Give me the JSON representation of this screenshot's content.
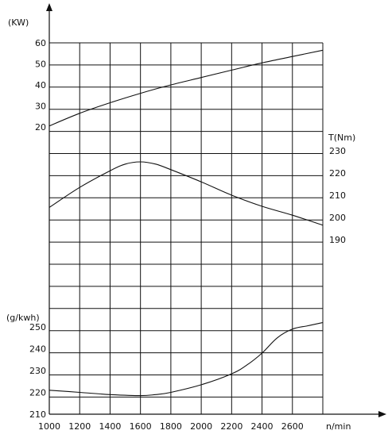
{
  "chart_data": {
    "type": "line",
    "title": "",
    "grid": true,
    "x": {
      "label": "n/min",
      "ticks": [
        1000,
        1200,
        1400,
        1600,
        1800,
        2000,
        2200,
        2400,
        2600
      ],
      "range": [
        1000,
        2800
      ]
    },
    "y_axes": [
      {
        "id": "power",
        "label": "(KW)",
        "side": "left",
        "ticks": [
          20,
          30,
          40,
          50,
          60
        ],
        "range": [
          20,
          60
        ]
      },
      {
        "id": "torque",
        "label": "T(Nm)",
        "side": "right",
        "ticks": [
          190,
          200,
          210,
          220,
          230
        ],
        "range": [
          190,
          230
        ]
      },
      {
        "id": "bsfc",
        "label": "(g/kwh)",
        "side": "left",
        "ticks": [
          210,
          220,
          230,
          240,
          250
        ],
        "range": [
          210,
          250
        ]
      }
    ],
    "series": [
      {
        "axis": "power",
        "x": [
          1000,
          1200,
          1400,
          1600,
          1800,
          2000,
          2200,
          2400,
          2600,
          2800
        ],
        "values": [
          20.5,
          26.5,
          31.5,
          36,
          40,
          43.5,
          47,
          50.5,
          53.5,
          56.5
        ]
      },
      {
        "axis": "torque",
        "x": [
          1000,
          1200,
          1400,
          1500,
          1600,
          1700,
          1800,
          2000,
          2200,
          2400,
          2600,
          2800
        ],
        "values": [
          204.5,
          213.5,
          221,
          224,
          225,
          224,
          221.5,
          216,
          210,
          205,
          201,
          196.5
        ]
      },
      {
        "axis": "bsfc",
        "x": [
          1000,
          1200,
          1400,
          1600,
          1700,
          1800,
          2000,
          2200,
          2300,
          2400,
          2500,
          2600,
          2700,
          2800
        ],
        "values": [
          221,
          220,
          219,
          218.5,
          219,
          220,
          223.5,
          228.5,
          232.5,
          238,
          245,
          249,
          250.5,
          252
        ]
      }
    ]
  }
}
